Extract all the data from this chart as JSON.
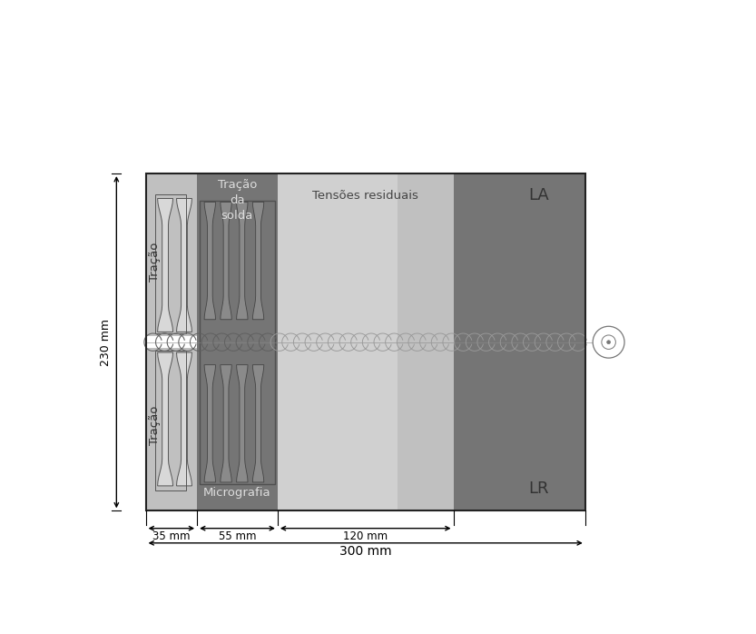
{
  "fig_width": 8.33,
  "fig_height": 6.98,
  "dpi": 100,
  "colors": {
    "col_tracao_bg": "#c0c0c0",
    "col_dark": "#737373",
    "col_tensoes": "#c8c8c8",
    "col_tensoes2": "#b8b8b8",
    "col_white": "#ffffff",
    "col_border": "#333333",
    "col_spec_light": "#d4d4d4",
    "col_spec_dark": "#888888",
    "col_spec_edge": "#555555",
    "col_weld_line": "#aaaaaa"
  },
  "labels": {
    "tracao": "Tração",
    "tracao_solda": "Tração\nda\nsolda",
    "tensoes": "Tensões residuais",
    "micrografia": "Micrografia",
    "LA": "LA",
    "LR": "LR",
    "dim_35": "35 mm",
    "dim_55": "55 mm",
    "dim_120": "120 mm",
    "dim_230": "230 mm",
    "dim_300": "300 mm"
  }
}
